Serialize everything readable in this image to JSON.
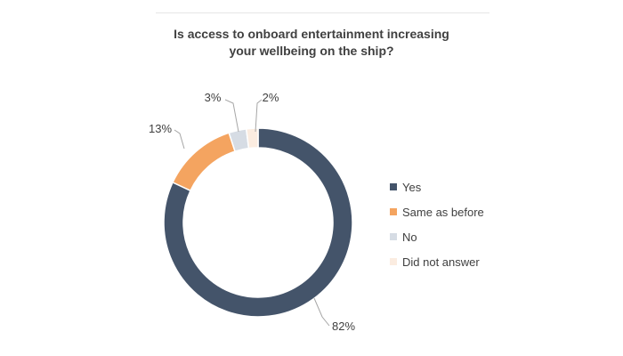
{
  "chart_data": {
    "type": "pie",
    "variant": "donut",
    "title_lines": [
      "Is access to onboard entertainment increasing",
      "your wellbeing on the ship?"
    ],
    "categories": [
      "Yes",
      "Same as before",
      "No",
      "Did not answer"
    ],
    "values": [
      82,
      13,
      3,
      2
    ],
    "labels": [
      "82%",
      "13%",
      "3%",
      "2%"
    ],
    "colors": [
      "#44546a",
      "#f4a460",
      "#d6dce4",
      "#fbece0"
    ],
    "legend_position": "right",
    "start_angle_deg": 0,
    "direction": "clockwise"
  }
}
